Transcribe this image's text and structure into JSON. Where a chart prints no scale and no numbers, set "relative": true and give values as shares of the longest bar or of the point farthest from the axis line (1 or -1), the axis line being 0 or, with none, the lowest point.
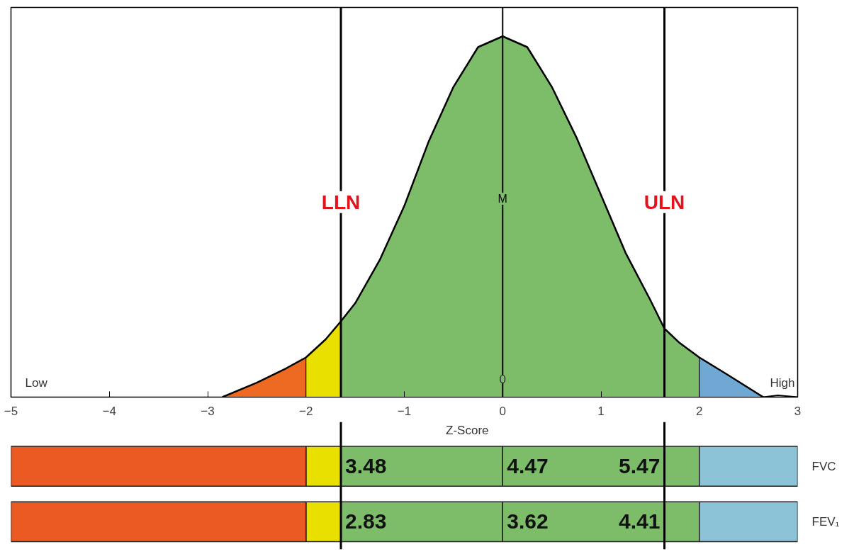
{
  "chart_data": [
    {
      "type": "area",
      "relative": true,
      "xlim": [
        -5,
        3
      ],
      "xticks": [
        -5,
        -4,
        -3,
        -2,
        -1,
        0,
        1,
        2,
        3
      ],
      "grid": false,
      "tick_labels": false,
      "series": [
        {
          "color": "#ee6a22",
          "x": [
            -2.85,
            -2.5,
            -2.2,
            -2
          ],
          "values": [
            0,
            0.04,
            0.08,
            0.11
          ]
        },
        {
          "color": "#e9e000",
          "x": [
            -2,
            -1.8,
            -1.645
          ],
          "values": [
            0.11,
            0.16,
            0.21
          ]
        },
        {
          "color": "#7dbd6a",
          "x": [
            -1.645,
            -1.5,
            -1.25,
            -1,
            -0.75,
            -0.5,
            -0.25,
            0,
            0.25,
            0.5,
            0.75,
            1,
            1.25,
            1.5,
            1.645,
            1.8,
            2
          ],
          "values": [
            0.21,
            0.26,
            0.38,
            0.53,
            0.71,
            0.86,
            0.97,
            1,
            0.97,
            0.86,
            0.72,
            0.56,
            0.4,
            0.27,
            0.19,
            0.15,
            0.11
          ]
        },
        {
          "color": "#6fa8d2",
          "x": [
            2,
            2.3,
            2.65
          ],
          "values": [
            0.11,
            0.06,
            0
          ]
        },
        {
          "type": "line",
          "color": "#000000",
          "x": [
            2.65,
            2.8,
            3
          ],
          "values": [
            0,
            0.005,
            0
          ]
        }
      ],
      "ref_lines": [
        {
          "axis": "x",
          "value": -1.645,
          "label": "LLN",
          "color": "#000000"
        },
        {
          "axis": "x",
          "value": 0,
          "label": "M",
          "color": "#000000"
        },
        {
          "axis": "x",
          "value": 1.645,
          "label": "ULN",
          "color": "#000000"
        }
      ],
      "annotations": [
        "Low",
        "High",
        {
          "text": "0",
          "x": 0,
          "y": 0.05
        }
      ]
    },
    {
      "type": "bar",
      "orientation": "horizontal",
      "stacked": true,
      "categories": [
        "FVC",
        "FEV₁"
      ],
      "xlabel": "Z-Score",
      "xlim": [
        -5,
        3
      ],
      "xticks": [
        -5,
        -4,
        -3,
        -2,
        -1,
        0,
        1,
        2,
        3
      ],
      "grid": false,
      "series": [
        {
          "color": "#7dbd6a",
          "values": [
            -1.645,
            -1.645
          ]
        },
        {
          "color": "#e9e000",
          "values": [
            -0.355,
            -0.355
          ]
        },
        {
          "color": "#ec5a24",
          "values": [
            -3,
            -3
          ]
        },
        {
          "color": "#7dbd6a",
          "values": [
            2,
            2
          ]
        },
        {
          "color": "#8cc3d6",
          "values": [
            1,
            1
          ]
        }
      ],
      "ref_lines": [
        {
          "axis": "x",
          "value": -1.645,
          "color": "#000000"
        },
        {
          "axis": "x",
          "value": 1.645,
          "color": "#000000"
        }
      ],
      "annotations": [
        {
          "text": "3.48",
          "x": -1.645,
          "y": "FVC"
        },
        {
          "text": "4.47",
          "x": 0,
          "y": "FVC"
        },
        {
          "text": "5.47",
          "x": 1.645,
          "y": "FVC"
        },
        {
          "text": "2.83",
          "x": -1.645,
          "y": "FEV₁"
        },
        {
          "text": "3.62",
          "x": 0,
          "y": "FEV₁"
        },
        {
          "text": "4.41",
          "x": 1.645,
          "y": "FEV₁"
        }
      ]
    }
  ]
}
